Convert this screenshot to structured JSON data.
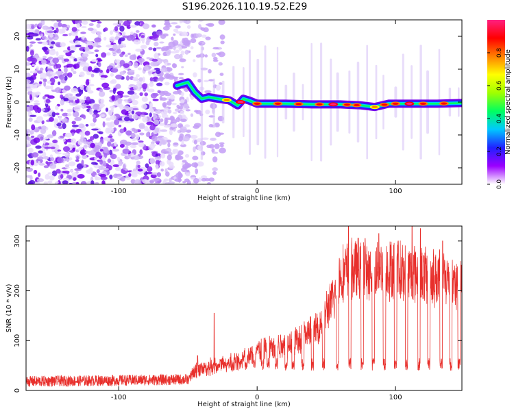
{
  "title": "S196.2026.110.19.52.E29",
  "chart_data": [
    {
      "type": "heatmap",
      "xlabel": "Height of straight line (km)",
      "ylabel": "Frequency (Hz)",
      "xlim": [
        -167,
        148
      ],
      "ylim": [
        -25,
        25
      ],
      "xticks": [
        -100,
        0,
        100
      ],
      "yticks": [
        -20,
        -10,
        0,
        10,
        20
      ],
      "colorbar": {
        "label": "Normalized spectral amplitude",
        "range": [
          0,
          1
        ],
        "ticks": [
          0.0,
          0.2,
          0.4,
          0.6,
          0.8
        ],
        "colors": [
          "#ffffff",
          "#9b00ff",
          "#2020ff",
          "#00c8ff",
          "#00ff60",
          "#a0ff00",
          "#ffff00",
          "#ff8000",
          "#ff0000",
          "#ff2080"
        ]
      },
      "noise_region": [
        -167,
        -50
      ],
      "track": [
        [
          -58,
          5
        ],
        [
          -50,
          6
        ],
        [
          -45,
          3
        ],
        [
          -40,
          1
        ],
        [
          -35,
          1.5
        ],
        [
          -28,
          1
        ],
        [
          -20,
          0.5
        ],
        [
          -14,
          -1
        ],
        [
          -10,
          1
        ],
        [
          -6,
          0.5
        ],
        [
          0,
          -0.5
        ],
        [
          20,
          -0.5
        ],
        [
          40,
          -0.7
        ],
        [
          60,
          -0.7
        ],
        [
          75,
          -1
        ],
        [
          85,
          -1.5
        ],
        [
          95,
          -0.5
        ],
        [
          110,
          -0.5
        ],
        [
          130,
          -0.5
        ],
        [
          148,
          -0.3
        ]
      ],
      "track_peaks": [
        [
          -22,
          0.8
        ],
        [
          -12,
          0.95
        ],
        [
          0,
          0.9
        ],
        [
          15,
          0.9
        ],
        [
          30,
          0.85
        ],
        [
          45,
          0.9
        ],
        [
          55,
          0.95
        ],
        [
          65,
          0.9
        ],
        [
          72,
          0.85
        ],
        [
          85,
          0.8
        ],
        [
          92,
          0.9
        ],
        [
          100,
          0.92
        ],
        [
          110,
          0.95
        ],
        [
          120,
          0.9
        ],
        [
          135,
          0.85
        ]
      ]
    },
    {
      "type": "line",
      "xlabel": "Height of straight line (km)",
      "ylabel": "SNR (10 * v/v)",
      "xlim": [
        -167,
        148
      ],
      "ylim": [
        0,
        330
      ],
      "xticks": [
        -100,
        0,
        100
      ],
      "yticks": [
        0,
        100,
        200,
        300
      ],
      "color": "#e8302c",
      "baseline": {
        "x": [
          -167,
          -50,
          -45,
          -30,
          -20,
          -10,
          0,
          10,
          20,
          30,
          40,
          45,
          50,
          55,
          60,
          70,
          80,
          90,
          100,
          110,
          120,
          130,
          140,
          148
        ],
        "y": [
          18,
          22,
          40,
          55,
          60,
          70,
          85,
          90,
          100,
          110,
          125,
          135,
          170,
          190,
          245,
          260,
          255,
          260,
          255,
          250,
          245,
          240,
          235,
          225
        ]
      },
      "dips": [
        -42,
        -35,
        -28,
        -22,
        -18,
        -12,
        -8,
        -2,
        4,
        8,
        14,
        21,
        26,
        33,
        40,
        48,
        58,
        67,
        76,
        84,
        92,
        100,
        108,
        117,
        124,
        133,
        140,
        146
      ],
      "spikes": [
        [
          -43,
          70
        ],
        [
          -31,
          155
        ],
        [
          5,
          105
        ],
        [
          41,
          130
        ],
        [
          57,
          190
        ],
        [
          66,
          330
        ],
        [
          78,
          305
        ],
        [
          88,
          315
        ],
        [
          102,
          300
        ],
        [
          112,
          330
        ],
        [
          118,
          325
        ],
        [
          134,
          300
        ]
      ]
    }
  ]
}
